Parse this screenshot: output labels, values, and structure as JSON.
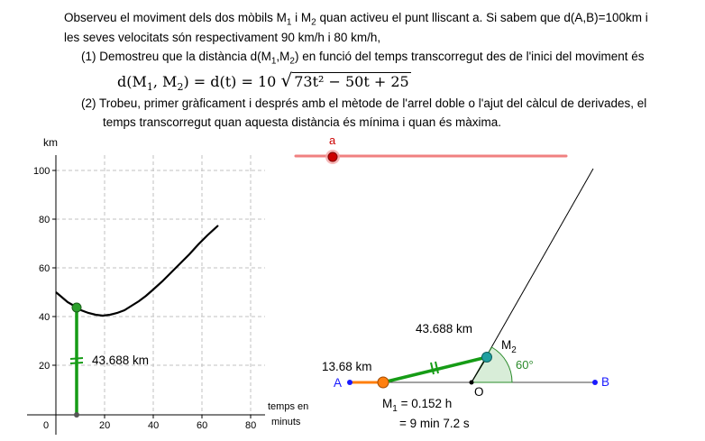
{
  "problem": {
    "line1": "Observeu el moviment dels dos mòbils M",
    "line1_sub1": "1",
    "line1_mid": " i M",
    "line1_sub2": "2",
    "line1_end": " quan activeu el punt lliscant a. Si sabem que d(A,B)=100km i",
    "line2": "les seves velocitats són respectivament 90 km/h i 80 km/h,",
    "part1_a": "(1) Demostreu que la distància d(M",
    "part1_sub1": "1",
    "part1_b": ",M",
    "part1_sub2": "2",
    "part1_c": ") en funció del temps transcorregut des  de l'inici del moviment és",
    "formula_lhs": "d(M",
    "formula_lhs_sub1": "1",
    "formula_lhs_mid": ", M",
    "formula_lhs_sub2": "2",
    "formula_lhs_end": ")  =  d(t)  =  10",
    "formula_radicand": "73t² − 50t + 25",
    "part2_line1": "(2) Trobeu, primer gràficament i després amb el mètode de l'arrel doble o l'ajut del càlcul de derivades, el",
    "part2_line2": "temps transcorregut quan aquesta distància és mínima i quan és màxima."
  },
  "graph": {
    "y_unit": "km",
    "x_unit_line1": "temps en",
    "x_unit_line2": "minuts",
    "y_ticks": [
      "100",
      "80",
      "60",
      "40",
      "20"
    ],
    "x_ticks": [
      "0",
      "20",
      "40",
      "60",
      "80"
    ],
    "marker_label": "43.688 km",
    "curve_color": "#000000",
    "point_color": "#2ca02c"
  },
  "slider": {
    "label": "a",
    "value_fraction": 0.145,
    "track_color": "#f08080",
    "knob_color": "#cc0000"
  },
  "construction": {
    "distance_label": "43.688 km",
    "m2_label": "M",
    "m2_sub": "2",
    "angle_label": "60°",
    "am1_label": "13.68 km",
    "point_a": "A",
    "point_b": "B",
    "point_o": "O",
    "m1_info_a": "M",
    "m1_info_sub": "1",
    "m1_info_b": " = 0.152 h",
    "m1_info_line2": "= 9 min 7.2 s",
    "segment_color": "#169c16",
    "am1_color": "#ff7f0e",
    "angle_color": "#2a8a2a"
  }
}
